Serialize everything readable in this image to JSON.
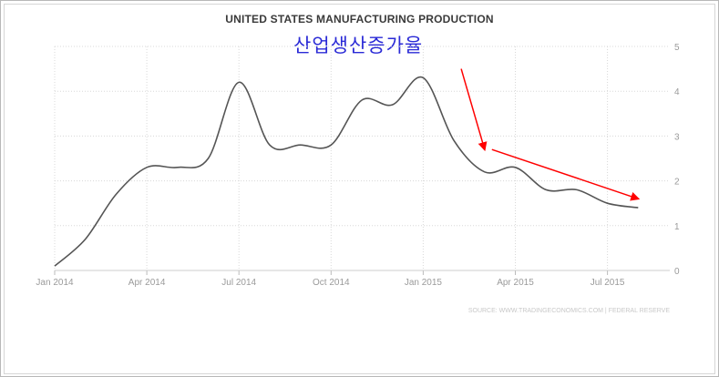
{
  "chart_data": {
    "type": "line",
    "title": "UNITED STATES MANUFACTURING PRODUCTION",
    "annotation": "산업생산증가율",
    "source": "SOURCE: WWW.TRADINGECONOMICS.COM  |  FEDERAL RESERVE",
    "xlabel": "",
    "ylabel": "",
    "x_tick_labels": [
      "Jan 2014",
      "Apr 2014",
      "Jul 2014",
      "Oct 2014",
      "Jan 2015",
      "Apr 2015",
      "Jul 2015"
    ],
    "y_ticks": [
      0,
      1,
      2,
      3,
      4,
      5
    ],
    "ylim": [
      0,
      5
    ],
    "x": [
      "2014-01",
      "2014-02",
      "2014-03",
      "2014-04",
      "2014-05",
      "2014-06",
      "2014-07",
      "2014-08",
      "2014-09",
      "2014-10",
      "2014-11",
      "2014-12",
      "2015-01",
      "2015-02",
      "2015-03",
      "2015-04",
      "2015-05",
      "2015-06",
      "2015-07",
      "2015-08"
    ],
    "series": [
      {
        "values": [
          0.1,
          0.7,
          1.7,
          2.3,
          2.3,
          2.5,
          4.2,
          2.8,
          2.8,
          2.8,
          3.8,
          3.7,
          4.3,
          2.9,
          2.2,
          2.3,
          1.8,
          1.8,
          1.5,
          1.4
        ]
      }
    ],
    "arrows": [
      {
        "from": [
          "2015-02",
          4.5
        ],
        "to": [
          "2015-03",
          2.7
        ]
      },
      {
        "from": [
          "2015-03",
          2.7
        ],
        "to": [
          "2015-08",
          1.6
        ]
      }
    ],
    "grid": true,
    "colors": {
      "line": "#555555",
      "arrow": "#ff0000",
      "annotation": "#2a2ad6",
      "grid": "#d8d8d8"
    }
  }
}
